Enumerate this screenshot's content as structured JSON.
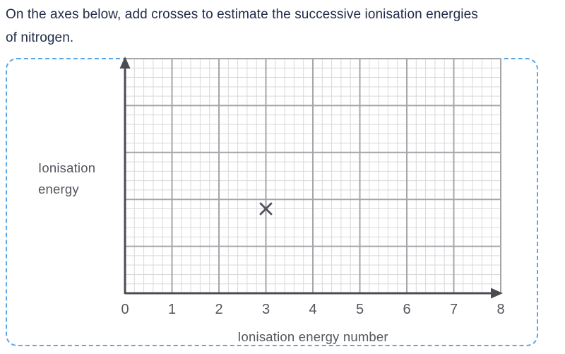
{
  "question": {
    "text": "On the axes below, add crosses to estimate the successive ionisation energies\nof nitrogen."
  },
  "chart_data": {
    "type": "scatter",
    "title": "",
    "xlabel": "Ionisation energy number",
    "ylabel": "Ionisation energy",
    "xlim": [
      0,
      8
    ],
    "x_ticks": [
      "0",
      "1",
      "2",
      "3",
      "4",
      "5",
      "6",
      "7",
      "8"
    ],
    "y_ticks": [],
    "grid": "graph-paper",
    "major_divisions_x": 8,
    "major_divisions_y": 5,
    "minor_per_major": 5,
    "legend": "none",
    "points": [
      {
        "x": 3,
        "y_major_units_from_bottom": 1.8,
        "marker": "x"
      }
    ]
  },
  "colors": {
    "question_text": "#202b47",
    "axis": "#4b4c53",
    "grid_major": "#a5a6aa",
    "grid_minor": "#d9d9db",
    "marker": "#53545c",
    "labels": "#55565e",
    "panel_border": "#5ba7e8",
    "background": "#ffffff"
  }
}
